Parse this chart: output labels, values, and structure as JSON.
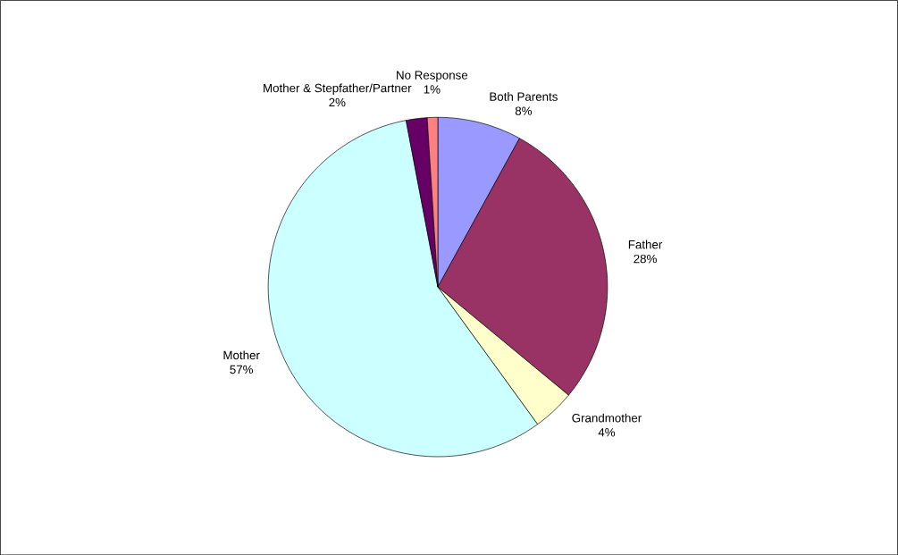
{
  "chart_data": {
    "type": "pie",
    "categories": [
      "Both Parents",
      "Father",
      "Grandmother",
      "Mother",
      "Mother & Stepfather/Partner",
      "No Response"
    ],
    "values": [
      8,
      28,
      4,
      57,
      2,
      1
    ],
    "value_labels": [
      "8%",
      "28%",
      "4%",
      "57%",
      "2%",
      "1%"
    ],
    "colors": [
      "#9999ff",
      "#993366",
      "#ffffcc",
      "#ccffff",
      "#660066",
      "#ff8080"
    ]
  }
}
